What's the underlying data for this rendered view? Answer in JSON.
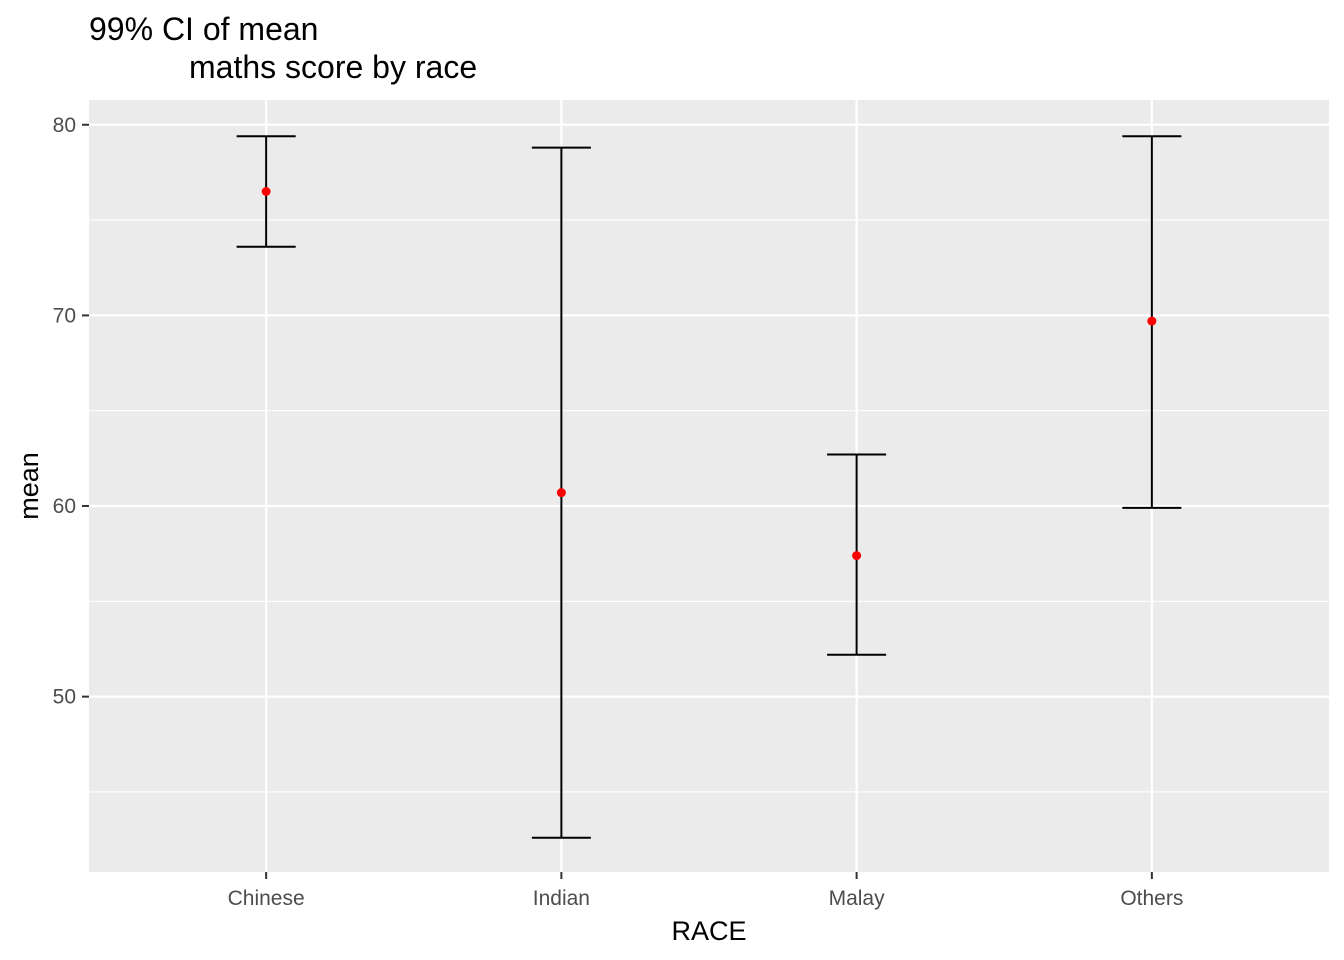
{
  "chart_data": {
    "type": "errorbar",
    "title_line1": "99% CI of mean",
    "title_line2": "maths score by race",
    "xlabel": "RACE",
    "ylabel": "mean",
    "categories": [
      "Chinese",
      "Indian",
      "Malay",
      "Others"
    ],
    "means": [
      76.5,
      60.7,
      57.4,
      69.7
    ],
    "lower": [
      73.6,
      42.6,
      52.2,
      59.9
    ],
    "upper": [
      79.4,
      78.8,
      62.7,
      79.4
    ],
    "ylim": [
      40.8,
      81.3
    ],
    "y_ticks": [
      50,
      60,
      70,
      80
    ],
    "grid": true,
    "colors": {
      "panel_background": "#ebebeb",
      "grid": "#ffffff",
      "point": "#ff0000",
      "errorbar": "#000000"
    }
  }
}
